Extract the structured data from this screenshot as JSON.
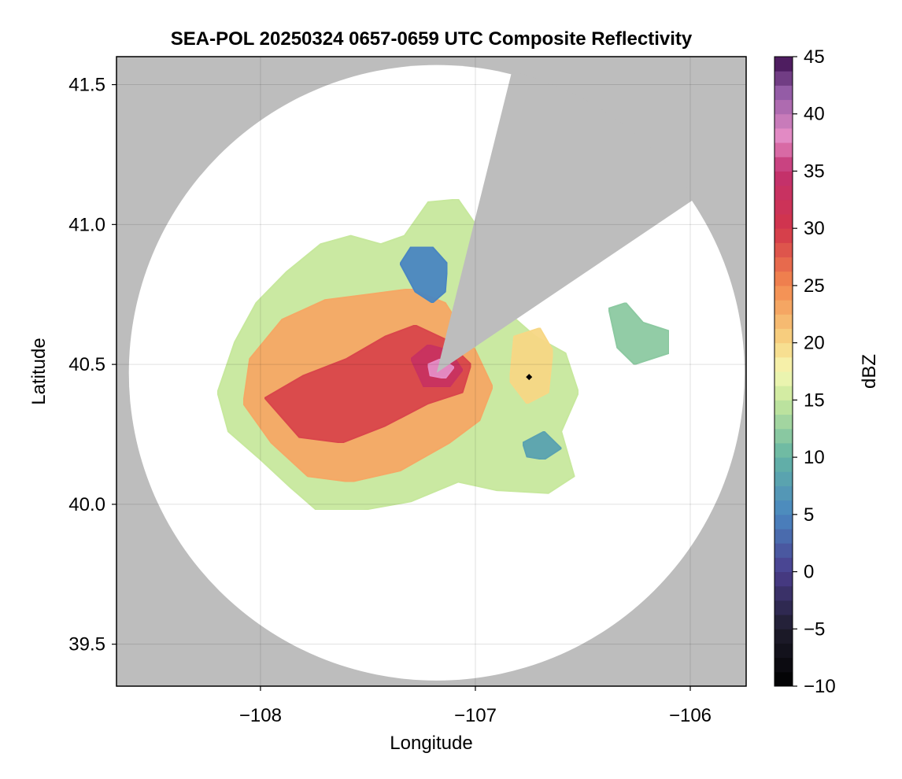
{
  "chart_data": {
    "type": "heatmap",
    "title": "SEA-POL 20250324 0657-0659 UTC Composite Reflectivity",
    "xlabel": "Longitude",
    "ylabel": "Latitude",
    "xlim": [
      -108.67,
      -105.74
    ],
    "ylim": [
      39.35,
      41.6
    ],
    "x_ticks": [
      -108,
      -107,
      -106
    ],
    "y_ticks": [
      39.5,
      40.0,
      40.5,
      41.0,
      41.5
    ],
    "x_tick_labels": [
      "−108",
      "−107",
      "−106"
    ],
    "y_tick_labels": [
      "39.5",
      "40.0",
      "40.5",
      "41.0",
      "41.5"
    ],
    "grid": true,
    "background_color": "#bdbdbd",
    "radar": {
      "center_lon": -107.18,
      "center_lat": 40.47,
      "range_lat_deg": 1.1,
      "blocked_sector_bearing_deg": [
        14,
        56
      ]
    },
    "marker": {
      "lon": -106.75,
      "lat": 40.455,
      "shape": "diamond",
      "color": "#000000"
    },
    "colorbar": {
      "label": "dBZ",
      "min": -10,
      "max": 45,
      "ticks": [
        -10,
        -5,
        0,
        5,
        10,
        15,
        20,
        25,
        30,
        35,
        40,
        45
      ],
      "tick_labels": [
        "−10",
        "−5",
        "0",
        "5",
        "10",
        "15",
        "20",
        "25",
        "30",
        "35",
        "40",
        "45"
      ],
      "colormap": [
        [
          -10,
          "#000000"
        ],
        [
          -5,
          "#1f1d2d"
        ],
        [
          0,
          "#4a3d8c"
        ],
        [
          5,
          "#4a86c1"
        ],
        [
          10,
          "#64b4a4"
        ],
        [
          15,
          "#c7e89d"
        ],
        [
          17.5,
          "#f6f8b5"
        ],
        [
          20,
          "#f7d785"
        ],
        [
          25,
          "#f3894f"
        ],
        [
          30,
          "#d2354a"
        ],
        [
          35,
          "#c2306f"
        ],
        [
          38,
          "#e58cc5"
        ],
        [
          42,
          "#915aa5"
        ],
        [
          45,
          "#3c0d4e"
        ]
      ]
    },
    "echo_regions": [
      {
        "name": "main-shield",
        "polygon": [
          [
            -108.12,
            40.58
          ],
          [
            -108.02,
            40.72
          ],
          [
            -107.88,
            40.83
          ],
          [
            -107.72,
            40.93
          ],
          [
            -107.58,
            40.96
          ],
          [
            -107.44,
            40.93
          ],
          [
            -107.33,
            40.96
          ],
          [
            -107.22,
            41.08
          ],
          [
            -107.08,
            41.09
          ],
          [
            -106.98,
            40.98
          ],
          [
            -106.9,
            40.72
          ],
          [
            -106.72,
            40.6
          ],
          [
            -106.58,
            40.54
          ],
          [
            -106.52,
            40.4
          ],
          [
            -106.6,
            40.26
          ],
          [
            -106.54,
            40.1
          ],
          [
            -106.66,
            40.04
          ],
          [
            -106.9,
            40.05
          ],
          [
            -107.08,
            40.08
          ],
          [
            -107.3,
            40.01
          ],
          [
            -107.52,
            39.98
          ],
          [
            -107.74,
            39.98
          ],
          [
            -107.86,
            40.06
          ],
          [
            -108.0,
            40.16
          ],
          [
            -108.15,
            40.26
          ],
          [
            -108.2,
            40.4
          ]
        ],
        "dbz": 15
      },
      {
        "name": "moderate-echo",
        "polygon": [
          [
            -108.05,
            40.52
          ],
          [
            -107.9,
            40.66
          ],
          [
            -107.7,
            40.73
          ],
          [
            -107.5,
            40.75
          ],
          [
            -107.3,
            40.77
          ],
          [
            -107.14,
            40.72
          ],
          [
            -107.0,
            40.55
          ],
          [
            -106.92,
            40.42
          ],
          [
            -106.98,
            40.3
          ],
          [
            -107.12,
            40.22
          ],
          [
            -107.35,
            40.12
          ],
          [
            -107.58,
            40.08
          ],
          [
            -107.78,
            40.1
          ],
          [
            -107.95,
            40.22
          ],
          [
            -108.08,
            40.36
          ]
        ],
        "dbz": 23
      },
      {
        "name": "strong-echo",
        "polygon": [
          [
            -107.98,
            40.38
          ],
          [
            -107.8,
            40.46
          ],
          [
            -107.6,
            40.52
          ],
          [
            -107.42,
            40.6
          ],
          [
            -107.28,
            40.64
          ],
          [
            -107.14,
            40.59
          ],
          [
            -107.02,
            40.5
          ],
          [
            -107.06,
            40.4
          ],
          [
            -107.22,
            40.36
          ],
          [
            -107.42,
            40.28
          ],
          [
            -107.62,
            40.22
          ],
          [
            -107.82,
            40.24
          ]
        ],
        "dbz": 29
      },
      {
        "name": "core-echo",
        "polygon": [
          [
            -107.3,
            40.52
          ],
          [
            -107.22,
            40.57
          ],
          [
            -107.12,
            40.55
          ],
          [
            -107.06,
            40.48
          ],
          [
            -107.12,
            40.42
          ],
          [
            -107.24,
            40.42
          ]
        ],
        "dbz": 33
      },
      {
        "name": "peak-echo",
        "polygon": [
          [
            -107.22,
            40.5
          ],
          [
            -107.16,
            40.52
          ],
          [
            -107.1,
            40.49
          ],
          [
            -107.14,
            40.45
          ],
          [
            -107.21,
            40.46
          ]
        ],
        "dbz": 38
      },
      {
        "name": "north-weak-echo",
        "polygon": [
          [
            -107.35,
            40.86
          ],
          [
            -107.3,
            40.92
          ],
          [
            -107.2,
            40.92
          ],
          [
            -107.13,
            40.86
          ],
          [
            -107.14,
            40.76
          ],
          [
            -107.2,
            40.72
          ],
          [
            -107.28,
            40.76
          ]
        ],
        "dbz": 5
      },
      {
        "name": "east-weak-echo",
        "polygon": [
          [
            -106.78,
            40.22
          ],
          [
            -106.68,
            40.26
          ],
          [
            -106.6,
            40.2
          ],
          [
            -106.68,
            40.16
          ],
          [
            -106.76,
            40.17
          ]
        ],
        "dbz": 8
      },
      {
        "name": "east-cell",
        "polygon": [
          [
            -106.82,
            40.6
          ],
          [
            -106.7,
            40.63
          ],
          [
            -106.64,
            40.55
          ],
          [
            -106.66,
            40.4
          ],
          [
            -106.76,
            40.36
          ],
          [
            -106.84,
            40.44
          ]
        ],
        "dbz": 20
      },
      {
        "name": "far-east-cell",
        "polygon": [
          [
            -106.38,
            40.7
          ],
          [
            -106.3,
            40.72
          ],
          [
            -106.22,
            40.65
          ],
          [
            -106.1,
            40.62
          ],
          [
            -106.1,
            40.54
          ],
          [
            -106.26,
            40.5
          ],
          [
            -106.34,
            40.56
          ]
        ],
        "dbz": 12
      }
    ]
  }
}
